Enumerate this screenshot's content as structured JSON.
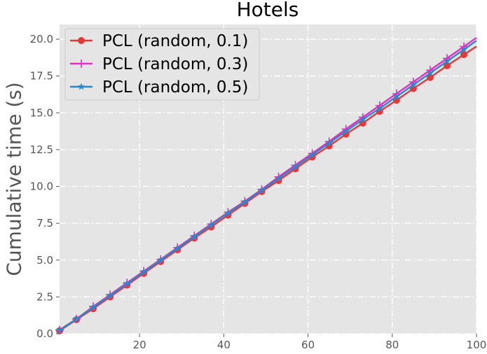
{
  "chart_data": {
    "type": "line",
    "title": "Hotels",
    "xlabel": "",
    "ylabel": "Cumulative time (s)",
    "xlim": [
      1,
      100
    ],
    "ylim": [
      0,
      21
    ],
    "x_ticks": [
      20,
      40,
      60,
      80,
      100
    ],
    "x_tick_labels": [
      "20",
      "40",
      "60",
      "80",
      "100"
    ],
    "y_ticks": [
      0,
      2.5,
      5,
      7.5,
      10,
      12.5,
      15,
      17.5,
      20
    ],
    "y_tick_labels": [
      "0.0",
      "2.5",
      "5.0",
      "7.5",
      "10.0",
      "12.5",
      "15.0",
      "17.5",
      "20.0"
    ],
    "grid": true,
    "legend_position": "top-left",
    "x": [
      1,
      5,
      9,
      13,
      17,
      21,
      25,
      29,
      33,
      37,
      41,
      45,
      49,
      53,
      57,
      61,
      65,
      69,
      73,
      77,
      81,
      85,
      89,
      93,
      97
    ],
    "series": [
      {
        "name": "PCL (random, 0.1)",
        "color": "#e03a3a",
        "marker": "circle",
        "values": [
          0.2,
          0.95,
          1.7,
          2.5,
          3.3,
          4.1,
          4.9,
          5.7,
          6.5,
          7.25,
          8.05,
          8.85,
          9.65,
          10.4,
          11.2,
          12.0,
          12.75,
          13.55,
          14.3,
          15.1,
          15.85,
          16.65,
          17.4,
          18.2,
          18.95
        ]
      },
      {
        "name": "PCL (random, 0.3)",
        "color": "#e22fc6",
        "marker": "plus",
        "values": [
          0.25,
          1.0,
          1.85,
          2.65,
          3.45,
          4.25,
          5.05,
          5.85,
          6.65,
          7.45,
          8.25,
          9.0,
          9.8,
          10.65,
          11.45,
          12.25,
          13.05,
          13.9,
          14.7,
          15.5,
          16.3,
          17.1,
          17.9,
          18.7,
          19.5
        ]
      },
      {
        "name": "PCL (random, 0.5)",
        "color": "#2f86c8",
        "marker": "star",
        "values": [
          0.25,
          1.0,
          1.8,
          2.6,
          3.4,
          4.2,
          5.0,
          5.8,
          6.6,
          7.4,
          8.2,
          8.95,
          9.75,
          10.55,
          11.35,
          12.15,
          12.95,
          13.75,
          14.55,
          15.3,
          16.1,
          16.9,
          17.7,
          18.5,
          19.3
        ]
      }
    ]
  }
}
